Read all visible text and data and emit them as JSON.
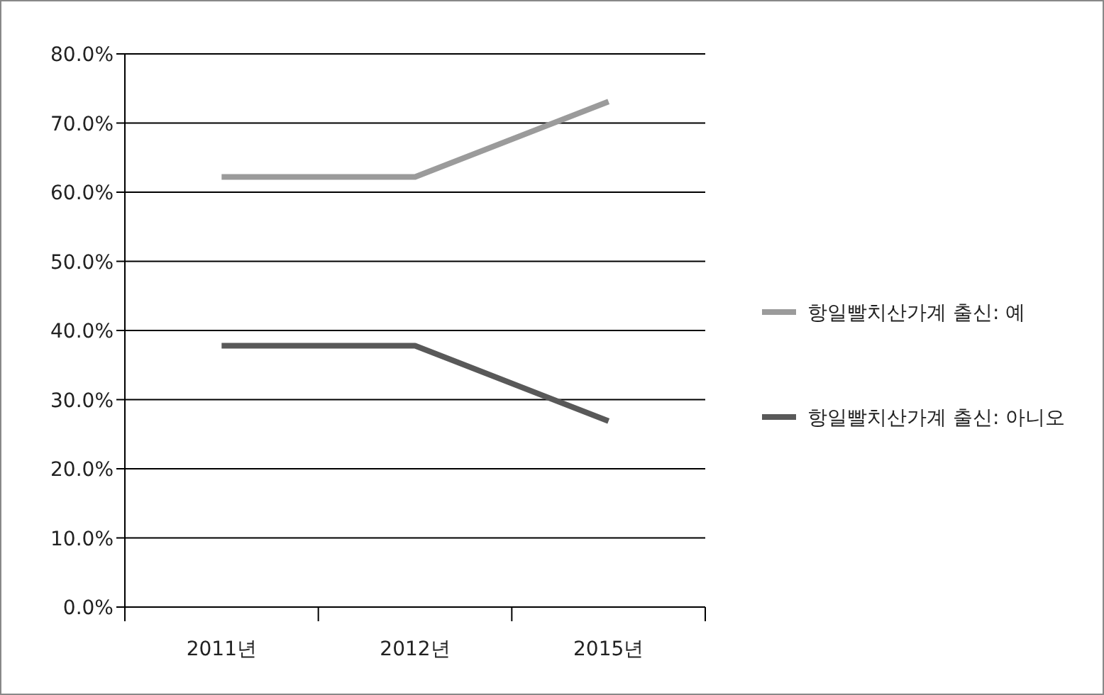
{
  "chart_data": {
    "type": "line",
    "categories": [
      "2011년",
      "2012년",
      "2015년"
    ],
    "series": [
      {
        "name": "항일빨치산가계 출신: 예",
        "color": "#9b9b9b",
        "values": [
          62.2,
          62.2,
          73.1
        ]
      },
      {
        "name": "항일빨치산가계 출신: 아니오",
        "color": "#595959",
        "values": [
          37.8,
          37.8,
          26.9
        ]
      }
    ],
    "ylim": [
      0,
      80
    ],
    "yticks": [
      {
        "value": 0,
        "label": "0.0%"
      },
      {
        "value": 10,
        "label": "10.0%"
      },
      {
        "value": 20,
        "label": "20.0%"
      },
      {
        "value": 30,
        "label": "30.0%"
      },
      {
        "value": 40,
        "label": "40.0%"
      },
      {
        "value": 50,
        "label": "50.0%"
      },
      {
        "value": 60,
        "label": "60.0%"
      },
      {
        "value": 70,
        "label": "70.0%"
      },
      {
        "value": 80,
        "label": "80.0%"
      }
    ],
    "grid": "y",
    "legend": "right",
    "marker": "none",
    "line_style": "solid"
  }
}
